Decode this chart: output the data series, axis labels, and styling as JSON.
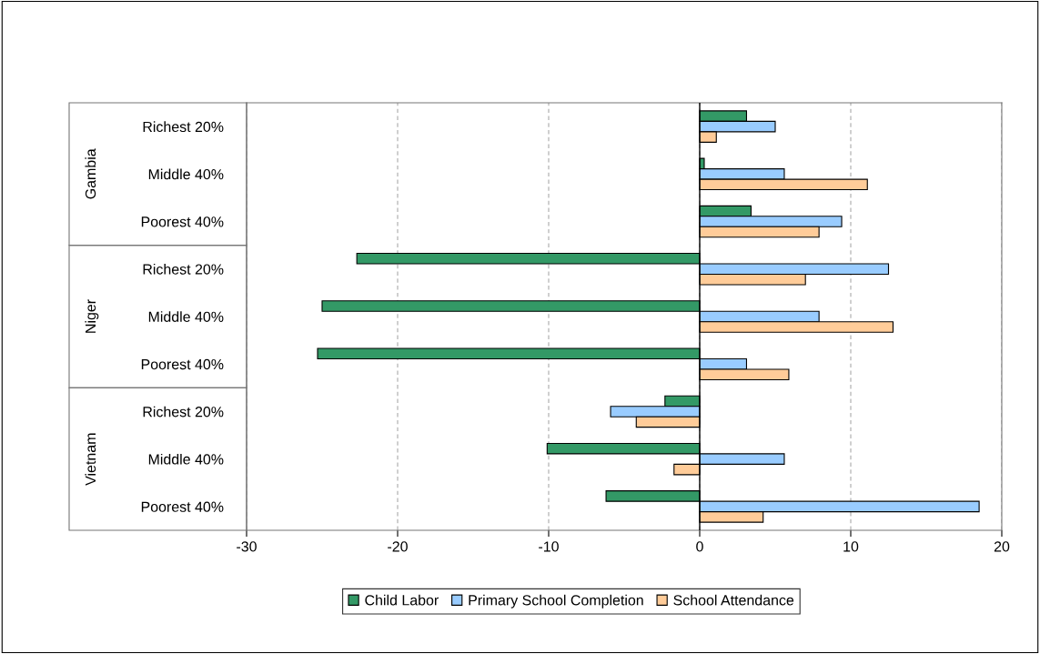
{
  "chart_data": {
    "type": "bar",
    "orientation": "horizontal",
    "categories": [
      "Richest 20%",
      "Middle 40%",
      "Poorest 40%",
      "Richest 20%",
      "Middle 40%",
      "Poorest 40%",
      "Richest 20%",
      "Middle 40%",
      "Poorest 40%"
    ],
    "annotations": [
      "Gambia",
      "Niger",
      "Vietnam"
    ],
    "series": [
      {
        "name": "Child Labor",
        "color": "#339966",
        "values": [
          3.1,
          0.3,
          3.4,
          -22.7,
          -25.0,
          -25.3,
          -2.3,
          -10.1,
          -6.2
        ]
      },
      {
        "name": "Primary School Completion",
        "color": "#99ccff",
        "values": [
          5.0,
          5.6,
          9.4,
          12.5,
          7.9,
          3.1,
          -5.9,
          5.6,
          18.5
        ]
      },
      {
        "name": "School Attendance",
        "color": "#ffcc99",
        "values": [
          1.1,
          11.1,
          7.9,
          7.0,
          12.8,
          5.9,
          -4.2,
          -1.7,
          4.2
        ]
      }
    ],
    "xlim": [
      -30,
      20
    ],
    "xticks": [
      -30,
      -20,
      -10,
      0,
      10,
      20
    ],
    "grid": "x",
    "legend": "bottom"
  }
}
